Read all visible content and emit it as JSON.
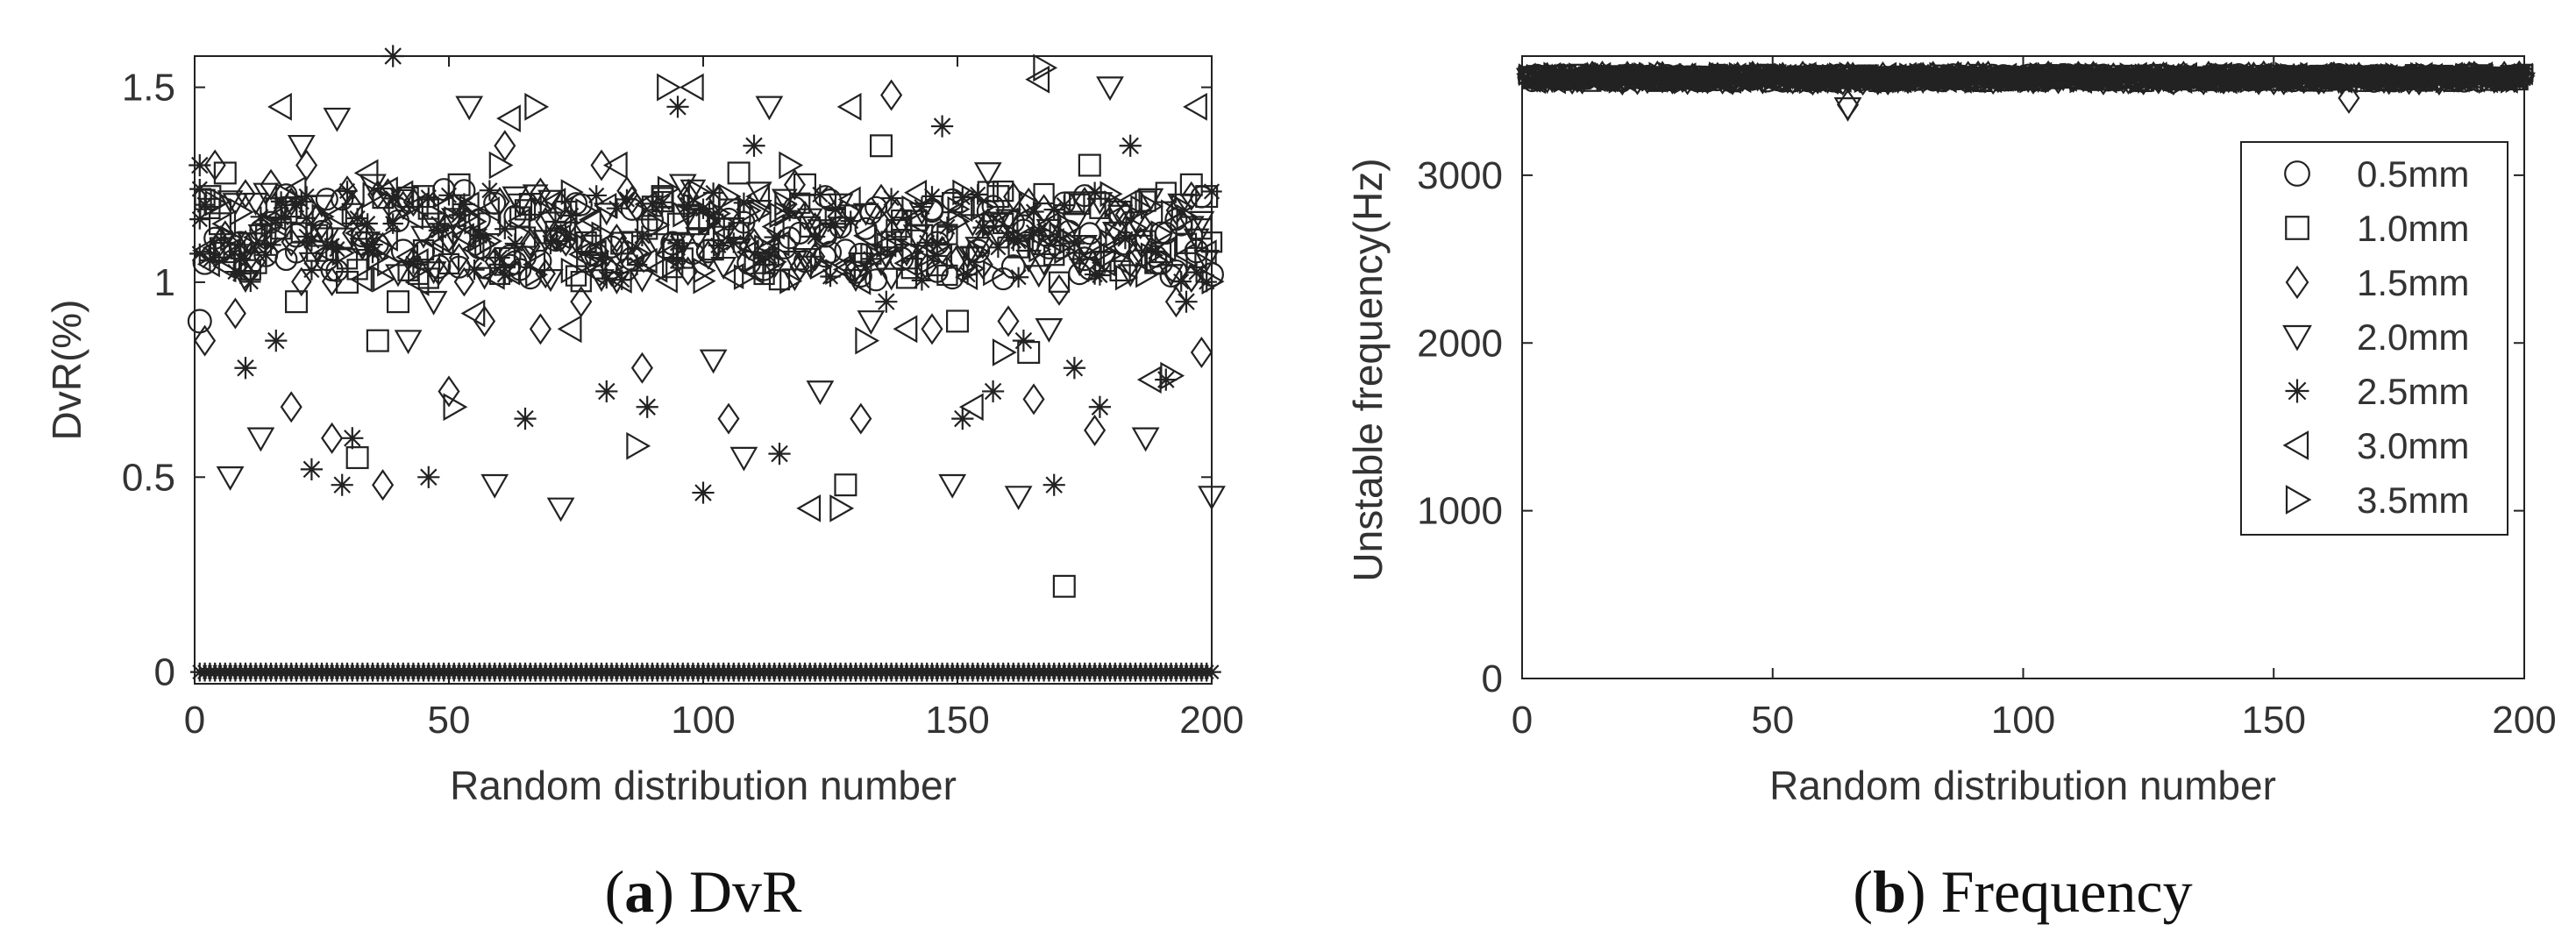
{
  "chart_data": [
    {
      "type": "scatter",
      "xlabel": "Random distribution number",
      "ylabel": "DvR(%)",
      "xlim": [
        0,
        200
      ],
      "ylim": [
        -0.03,
        1.58
      ],
      "xticks": [
        "0",
        "50",
        "100",
        "150",
        "200"
      ],
      "xtick_values": [
        0,
        50,
        100,
        150,
        200
      ],
      "yticks": [
        "0",
        "0.5",
        "1",
        "1.5"
      ],
      "ytick_values": [
        0,
        0.5,
        1,
        1.5
      ],
      "caption": {
        "label": "a",
        "text": "DvR"
      },
      "marker_color": "#222222",
      "series": [
        {
          "marker": "circle",
          "x": [
            1,
            2,
            5,
            9,
            14,
            20,
            26,
            33,
            41,
            48,
            56,
            63,
            71,
            79,
            86,
            94,
            101,
            109,
            116,
            124,
            131,
            139,
            146,
            154,
            161,
            168,
            175,
            183,
            190,
            197,
            200
          ],
          "y": [
            0.9,
            1.05,
            1.08,
            1.1,
            1.07,
            1.12,
            1.06,
            1.1,
            1.08,
            1.04,
            1.09,
            1.05,
            1.11,
            1.07,
            1.06,
            1.1,
            1.08,
            1.05,
            1.09,
            1.12,
            1.07,
            1.06,
            1.1,
            1.08,
            1.04,
            1.09,
            1.06,
            1.1,
            1.05,
            1.08,
            1.02
          ]
        },
        {
          "marker": "square",
          "x": [
            3,
            6,
            12,
            18,
            24,
            30,
            32,
            36,
            45,
            52,
            58,
            66,
            73,
            84,
            92,
            99,
            107,
            112,
            120,
            128,
            135,
            143,
            150,
            158,
            164,
            171,
            176,
            182,
            189,
            196,
            199,
            5,
            20,
            40
          ],
          "y": [
            1.22,
            1.28,
            1.05,
            1.18,
            1.12,
            1.0,
            0.55,
            0.85,
            1.22,
            1.25,
            1.15,
            1.2,
            1.18,
            1.1,
            1.22,
            1.15,
            1.28,
            1.05,
            1.25,
            0.48,
            1.35,
            1.12,
            0.9,
            1.22,
            0.82,
            0.22,
            1.3,
            1.18,
            1.05,
            1.25,
            1.22,
            1.15,
            0.95,
            0.95
          ]
        },
        {
          "marker": "diamond",
          "x": [
            2,
            4,
            8,
            15,
            19,
            22,
            27,
            37,
            43,
            50,
            57,
            61,
            68,
            76,
            88,
            97,
            105,
            114,
            118,
            131,
            137,
            145,
            155,
            160,
            165,
            170,
            177,
            186,
            193,
            198,
            25,
            80
          ],
          "y": [
            0.85,
            1.3,
            0.92,
            1.25,
            0.68,
            1.3,
            0.6,
            0.48,
            1.05,
            0.72,
            0.9,
            1.35,
            0.88,
            0.95,
            0.78,
            1.22,
            0.65,
            1.05,
            1.25,
            0.65,
            1.48,
            0.88,
            1.1,
            0.9,
            0.7,
            0.98,
            0.62,
            1.15,
            0.95,
            0.82,
            1.15,
            1.3
          ]
        },
        {
          "marker": "triangle-down",
          "x": [
            7,
            13,
            21,
            28,
            35,
            42,
            54,
            59,
            64,
            72,
            78,
            96,
            108,
            113,
            123,
            133,
            142,
            149,
            156,
            162,
            168,
            174,
            180,
            187,
            194,
            200,
            11,
            47,
            102
          ],
          "y": [
            0.5,
            0.6,
            1.35,
            1.42,
            1.25,
            0.85,
            1.45,
            0.48,
            1.2,
            0.42,
            1.05,
            1.25,
            0.55,
            1.45,
            0.72,
            0.9,
            1.12,
            0.48,
            1.28,
            0.45,
            0.88,
            1.05,
            1.5,
            0.6,
            1.2,
            0.45,
            1.1,
            0.95,
            0.8
          ]
        },
        {
          "marker": "asterisk",
          "x": [
            1,
            10,
            16,
            23,
            29,
            31,
            39,
            46,
            53,
            65,
            70,
            81,
            89,
            95,
            100,
            110,
            115,
            126,
            136,
            147,
            151,
            157,
            163,
            169,
            173,
            178,
            184,
            191,
            195
          ],
          "y": [
            1.3,
            0.78,
            0.85,
            0.52,
            0.48,
            0.6,
            1.58,
            0.5,
            1.2,
            0.65,
            1.1,
            0.72,
            0.68,
            1.45,
            0.46,
            1.35,
            0.56,
            1.15,
            0.95,
            1.4,
            0.65,
            0.72,
            0.85,
            0.48,
            0.78,
            0.68,
            1.35,
            0.75,
            0.95
          ]
        },
        {
          "marker": "triangle-left",
          "x": [
            6,
            17,
            34,
            44,
            55,
            62,
            74,
            83,
            98,
            111,
            121,
            129,
            140,
            153,
            166,
            179,
            188,
            197
          ],
          "y": [
            1.15,
            1.45,
            1.28,
            1.0,
            0.92,
            1.42,
            0.88,
            1.3,
            1.5,
            1.22,
            0.42,
            1.45,
            0.88,
            0.68,
            1.52,
            1.05,
            0.75,
            1.45
          ]
        },
        {
          "marker": "triangle-right",
          "x": [
            9,
            18,
            38,
            51,
            60,
            67,
            77,
            87,
            93,
            104,
            117,
            127,
            132,
            144,
            159,
            167,
            181,
            192
          ],
          "y": [
            1.18,
            1.22,
            1.05,
            0.68,
            1.3,
            1.45,
            1.18,
            0.58,
            1.5,
            1.1,
            1.3,
            0.42,
            0.85,
            1.05,
            0.82,
            1.55,
            1.2,
            0.76
          ]
        },
        {
          "marker": "asterisk",
          "name": "",
          "x_range": [
            1,
            200
          ],
          "y_constant": 0
        }
      ]
    },
    {
      "type": "scatter",
      "xlabel": "Random distribution number",
      "ylabel": "Unstable frequency(Hz)",
      "xlim": [
        0,
        200
      ],
      "ylim": [
        0,
        3710
      ],
      "xticks": [
        "0",
        "50",
        "100",
        "150",
        "200"
      ],
      "xtick_values": [
        0,
        50,
        100,
        150,
        200
      ],
      "yticks": [
        "0",
        "1000",
        "2000",
        "3000"
      ],
      "ytick_values": [
        0,
        1000,
        2000,
        3000
      ],
      "caption": {
        "label": "b",
        "text": "Frequency"
      },
      "legend_position": "top-right",
      "series": [
        {
          "name": "0.5mm",
          "marker": "circle",
          "x_range": [
            1,
            200
          ],
          "y_approx": 3580,
          "y_spread": 60
        },
        {
          "name": "1.0mm",
          "marker": "square",
          "x_range": [
            1,
            200
          ],
          "y_approx": 3580,
          "y_spread": 60
        },
        {
          "name": "1.5mm",
          "marker": "diamond",
          "x_range": [
            1,
            200
          ],
          "y_approx": 3580,
          "y_spread": 60,
          "outliers": [
            {
              "x": 65,
              "y": 3420
            },
            {
              "x": 165,
              "y": 3460
            }
          ]
        },
        {
          "name": "2.0mm",
          "marker": "triangle-down",
          "x_range": [
            1,
            200
          ],
          "y_approx": 3580,
          "y_spread": 60,
          "outliers": [
            {
              "x": 65,
              "y": 3400
            }
          ]
        },
        {
          "name": "2.5mm",
          "marker": "asterisk",
          "x_range": [
            1,
            200
          ],
          "y_approx": 3580,
          "y_spread": 60
        },
        {
          "name": "3.0mm",
          "marker": "triangle-left",
          "x_range": [
            1,
            200
          ],
          "y_approx": 3580,
          "y_spread": 60
        },
        {
          "name": "3.5mm",
          "marker": "triangle-right",
          "x_range": [
            1,
            200
          ],
          "y_approx": 3580,
          "y_spread": 60
        }
      ]
    }
  ]
}
